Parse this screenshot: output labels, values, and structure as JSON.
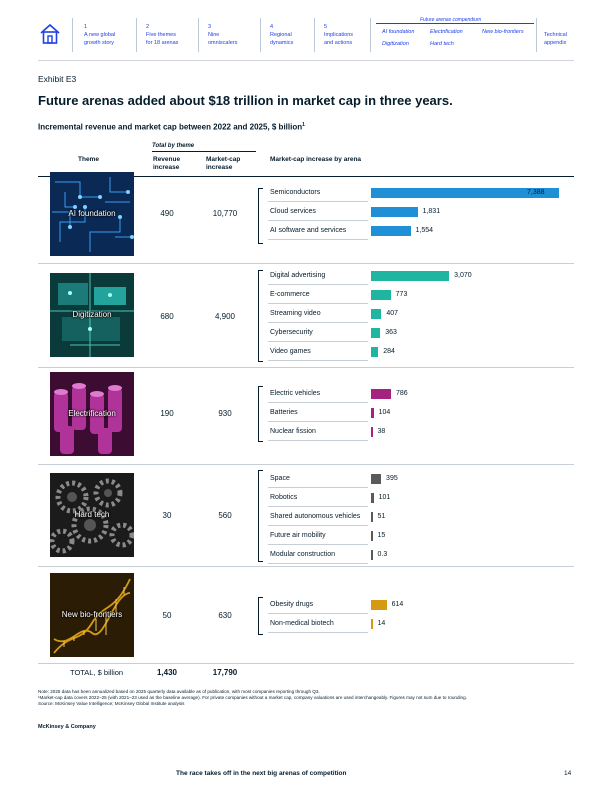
{
  "nav": {
    "items": [
      {
        "num": "1",
        "line1": "A new global",
        "line2": "growth story"
      },
      {
        "num": "2",
        "line1": "Five themes",
        "line2": "for 18 arenas"
      },
      {
        "num": "3",
        "line1": "Nine",
        "line2": "omniscalers"
      },
      {
        "num": "4",
        "line1": "Regional",
        "line2": "dynamics"
      },
      {
        "num": "5",
        "line1": "Implications",
        "line2": "and actions"
      }
    ],
    "compendium_title": "Future arenas compendium",
    "compendium_items": [
      "AI foundation",
      "Electrification",
      "New bio-frontiers",
      "Digitization",
      "Hard tech"
    ],
    "technical": {
      "line1": "Technical",
      "line2": "appendix"
    },
    "accent_color": "#1f40e6"
  },
  "exhibit_label": "Exhibit E3",
  "headline": "Future arenas added about $18 trillion in market cap in three years.",
  "subtitle": "Incremental revenue and market cap between 2022 and 2025, $ billion",
  "subtitle_sup": "1",
  "table": {
    "total_by_theme": "Total by theme",
    "col_theme": "Theme",
    "col_revenue": "Revenue increase",
    "col_marketcap_1": "Market-cap",
    "col_marketcap_2": "increase",
    "col_revenue_1": "Revenue",
    "col_revenue_2": "increase",
    "col_bars": "Market-cap increase by arena",
    "themes": [
      {
        "name": "AI foundation",
        "revenue": "490",
        "marketcap": "10,770",
        "color": "#1f8fd6",
        "arenas": [
          {
            "name": "Semiconductors",
            "value": 7388,
            "label": "7,388"
          },
          {
            "name": "Cloud services",
            "value": 1831,
            "label": "1,831"
          },
          {
            "name": "AI software and services",
            "value": 1554,
            "label": "1,554"
          }
        ]
      },
      {
        "name": "Digitization",
        "revenue": "680",
        "marketcap": "4,900",
        "color": "#1fb5a0",
        "arenas": [
          {
            "name": "Digital advertising",
            "value": 3070,
            "label": "3,070"
          },
          {
            "name": "E-commerce",
            "value": 773,
            "label": "773"
          },
          {
            "name": "Streaming video",
            "value": 407,
            "label": "407"
          },
          {
            "name": "Cybersecurity",
            "value": 363,
            "label": "363"
          },
          {
            "name": "Video games",
            "value": 284,
            "label": "284"
          }
        ]
      },
      {
        "name": "Electrification",
        "revenue": "190",
        "marketcap": "930",
        "color": "#a3237e",
        "arenas": [
          {
            "name": "Electric vehicles",
            "value": 786,
            "label": "786"
          },
          {
            "name": "Batteries",
            "value": 104,
            "label": "104"
          },
          {
            "name": "Nuclear fission",
            "value": 38,
            "label": "38"
          }
        ]
      },
      {
        "name": "Hard tech",
        "revenue": "30",
        "marketcap": "560",
        "color": "#5a5a5a",
        "arenas": [
          {
            "name": "Space",
            "value": 395,
            "label": "395"
          },
          {
            "name": "Robotics",
            "value": 101,
            "label": "101"
          },
          {
            "name": "Shared autonomous vehicles",
            "value": 51,
            "label": "51"
          },
          {
            "name": "Future air mobility",
            "value": 15,
            "label": "15"
          },
          {
            "name": "Modular construction",
            "value": 0.3,
            "label": "0.3"
          }
        ]
      },
      {
        "name": "New bio-frontiers",
        "revenue": "50",
        "marketcap": "630",
        "color": "#d49a12",
        "arenas": [
          {
            "name": "Obesity drugs",
            "value": 614,
            "label": "614"
          },
          {
            "name": "Non-medical biotech",
            "value": 14,
            "label": "14"
          }
        ]
      }
    ],
    "total_label": "TOTAL, $ billion",
    "total_revenue": "1,430",
    "total_marketcap": "17,790"
  },
  "notes": {
    "line1": "Note: 2025 data has been annualized based on 2025 quarterly data available as of publication, with most companies reporting through Q3.",
    "line2": "¹Market-cap data covers 2022–25 (with 2021–23 used as the baseline average). For private companies without a market cap, company valuations are used interchangeably. Figures may not sum due to rounding.",
    "line3": "Source: McKinsey Value Intelligence; McKinsey Global Institute analysis"
  },
  "brand": "McKinsey & Company",
  "footer_title": "The race takes off in the next big arenas of competition",
  "page_number": "14"
}
